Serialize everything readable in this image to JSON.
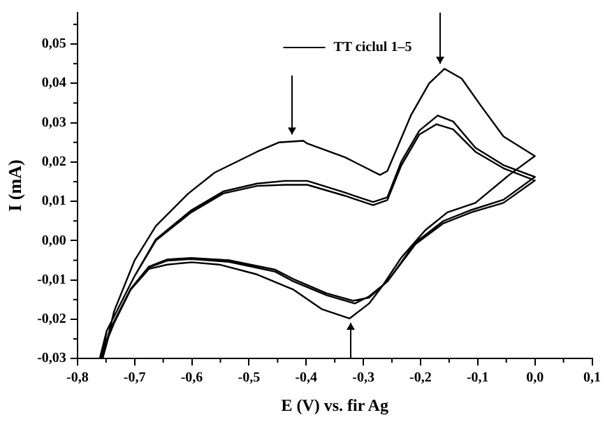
{
  "chart_data": {
    "type": "line",
    "xlabel": "E (V) vs. fir Ag",
    "ylabel": "I (mA)",
    "xlim": [
      -0.8,
      0.1
    ],
    "xticks": [
      {
        "value": -0.8,
        "label": "-0,8"
      },
      {
        "value": -0.7,
        "label": "-0,7"
      },
      {
        "value": -0.6,
        "label": "-0,6"
      },
      {
        "value": -0.5,
        "label": "-0,5"
      },
      {
        "value": -0.4,
        "label": "-0,4"
      },
      {
        "value": -0.3,
        "label": "-0,3"
      },
      {
        "value": -0.2,
        "label": "-0,2"
      },
      {
        "value": -0.1,
        "label": "-0,1"
      },
      {
        "value": 0,
        "label": "0,0"
      },
      {
        "value": 0.1,
        "label": "0,1"
      }
    ],
    "ylim": [
      -0.03,
      0.058
    ],
    "yticks": [
      {
        "value": -0.03,
        "label": "-0,03"
      },
      {
        "value": -0.02,
        "label": "-0,02"
      },
      {
        "value": -0.01,
        "label": "-0,01"
      },
      {
        "value": 0,
        "label": "0,00"
      },
      {
        "value": 0.01,
        "label": "0,01"
      },
      {
        "value": 0.02,
        "label": "0,02"
      },
      {
        "value": 0.03,
        "label": "0,03"
      },
      {
        "value": 0.04,
        "label": "0,04"
      },
      {
        "value": 0.05,
        "label": "0,05"
      }
    ],
    "grid": false,
    "legend": "top",
    "marker": "none",
    "line_style": "solid",
    "series": [
      {
        "name": "TT ciclul 1–5",
        "color": "#000000",
        "x": [
          -0.756,
          -0.736,
          -0.7,
          -0.663,
          -0.606,
          -0.56,
          -0.486,
          -0.447,
          -0.405,
          -0.398,
          -0.332,
          -0.271,
          -0.258,
          -0.217,
          -0.185,
          -0.158,
          -0.128,
          -0.094,
          -0.055,
          0,
          -0.045,
          -0.104,
          -0.153,
          -0.192,
          -0.234,
          -0.266,
          -0.29,
          -0.324,
          -0.373,
          -0.422,
          -0.486,
          -0.552,
          -0.6,
          -0.643,
          -0.675,
          -0.707,
          -0.736,
          -0.761,
          -0.749,
          -0.7,
          -0.663,
          -0.601,
          -0.545,
          -0.486,
          -0.437,
          -0.398,
          -0.332,
          -0.283,
          -0.258,
          -0.234,
          -0.202,
          -0.17,
          -0.143,
          -0.104,
          -0.055,
          0,
          -0.055,
          -0.111,
          -0.16,
          -0.209,
          -0.258,
          -0.29,
          -0.318,
          -0.364,
          -0.422,
          -0.454,
          -0.535,
          -0.601,
          -0.643,
          -0.675,
          -0.707,
          -0.741,
          -0.756,
          -0.749,
          -0.7,
          -0.663,
          -0.601,
          -0.545,
          -0.486,
          -0.437,
          -0.398,
          -0.332,
          -0.283,
          -0.258,
          -0.234,
          -0.202,
          -0.172,
          -0.143,
          -0.104,
          -0.055,
          0,
          -0.055,
          -0.111,
          -0.16,
          -0.209,
          -0.258,
          -0.29,
          -0.315,
          -0.364,
          -0.422,
          -0.454,
          -0.535,
          -0.601,
          -0.643,
          -0.675,
          -0.707,
          -0.741,
          -0.759
        ],
        "values": [
          -0.03,
          -0.018,
          -0.005,
          0.0037,
          0.012,
          0.0173,
          0.0226,
          0.025,
          0.0254,
          0.0247,
          0.0212,
          0.0167,
          0.0177,
          0.0318,
          0.04,
          0.0437,
          0.0412,
          0.0342,
          0.0265,
          0.0215,
          0.0167,
          0.0096,
          0.0072,
          0.0026,
          -0.0044,
          -0.0114,
          -0.016,
          -0.0198,
          -0.0174,
          -0.0125,
          -0.0086,
          -0.0061,
          -0.0055,
          -0.0061,
          -0.0072,
          -0.0125,
          -0.021,
          -0.03,
          -0.023,
          -0.009,
          0.0003,
          0.0077,
          0.0125,
          0.0145,
          0.0152,
          0.0152,
          0.0122,
          0.0098,
          0.011,
          0.02,
          0.028,
          0.0318,
          0.0303,
          0.0236,
          0.0192,
          0.0162,
          0.0104,
          0.0078,
          0.005,
          -0.0005,
          -0.0104,
          -0.0145,
          -0.0153,
          -0.0134,
          -0.0098,
          -0.0074,
          -0.005,
          -0.0044,
          -0.0048,
          -0.0066,
          -0.0123,
          -0.022,
          -0.03,
          -0.023,
          -0.009,
          0,
          0.0072,
          0.012,
          0.0139,
          0.0142,
          0.0142,
          0.0114,
          0.009,
          0.0103,
          0.019,
          0.027,
          0.0296,
          0.0283,
          0.0226,
          0.0184,
          0.0153,
          0.0096,
          0.0072,
          0.0044,
          -0.0009,
          -0.0104,
          -0.0142,
          -0.016,
          -0.0139,
          -0.0104,
          -0.0079,
          -0.0054,
          -0.0047,
          -0.0051,
          -0.0068,
          -0.0125,
          -0.022,
          -0.03
        ]
      }
    ]
  }
}
